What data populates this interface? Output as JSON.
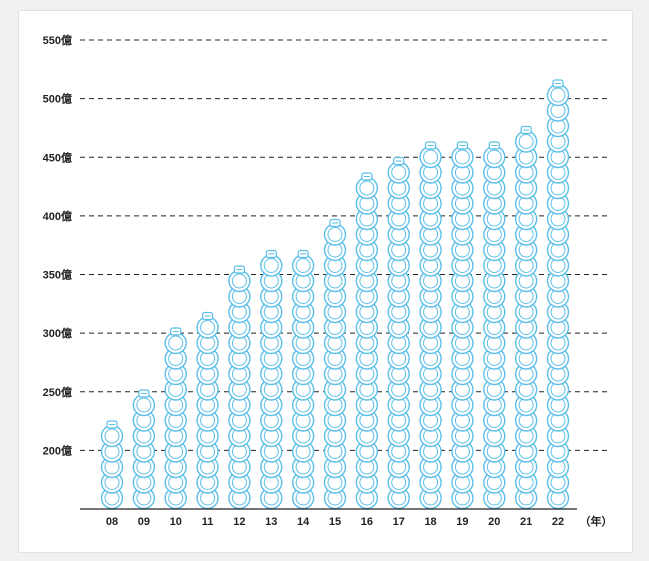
{
  "chart_data": {
    "type": "bar",
    "categories": [
      "08",
      "09",
      "10",
      "11",
      "12",
      "13",
      "14",
      "15",
      "16",
      "17",
      "18",
      "19",
      "20",
      "21",
      "22"
    ],
    "values": [
      235,
      258,
      305,
      325,
      358,
      370,
      380,
      403,
      440,
      450,
      470,
      465,
      465,
      480,
      520
    ],
    "ytick_labels": [
      "200億",
      "250億",
      "300億",
      "350億",
      "400億",
      "450億",
      "500億",
      "550億"
    ],
    "ytick_values": [
      200,
      250,
      300,
      350,
      400,
      450,
      500,
      550
    ],
    "x_unit_label": "（年）",
    "ylim": [
      150,
      550
    ],
    "grid": "dashed horizontal",
    "bar_color": "#5bbfe8",
    "bar_style": "stacked-ring-icons"
  }
}
